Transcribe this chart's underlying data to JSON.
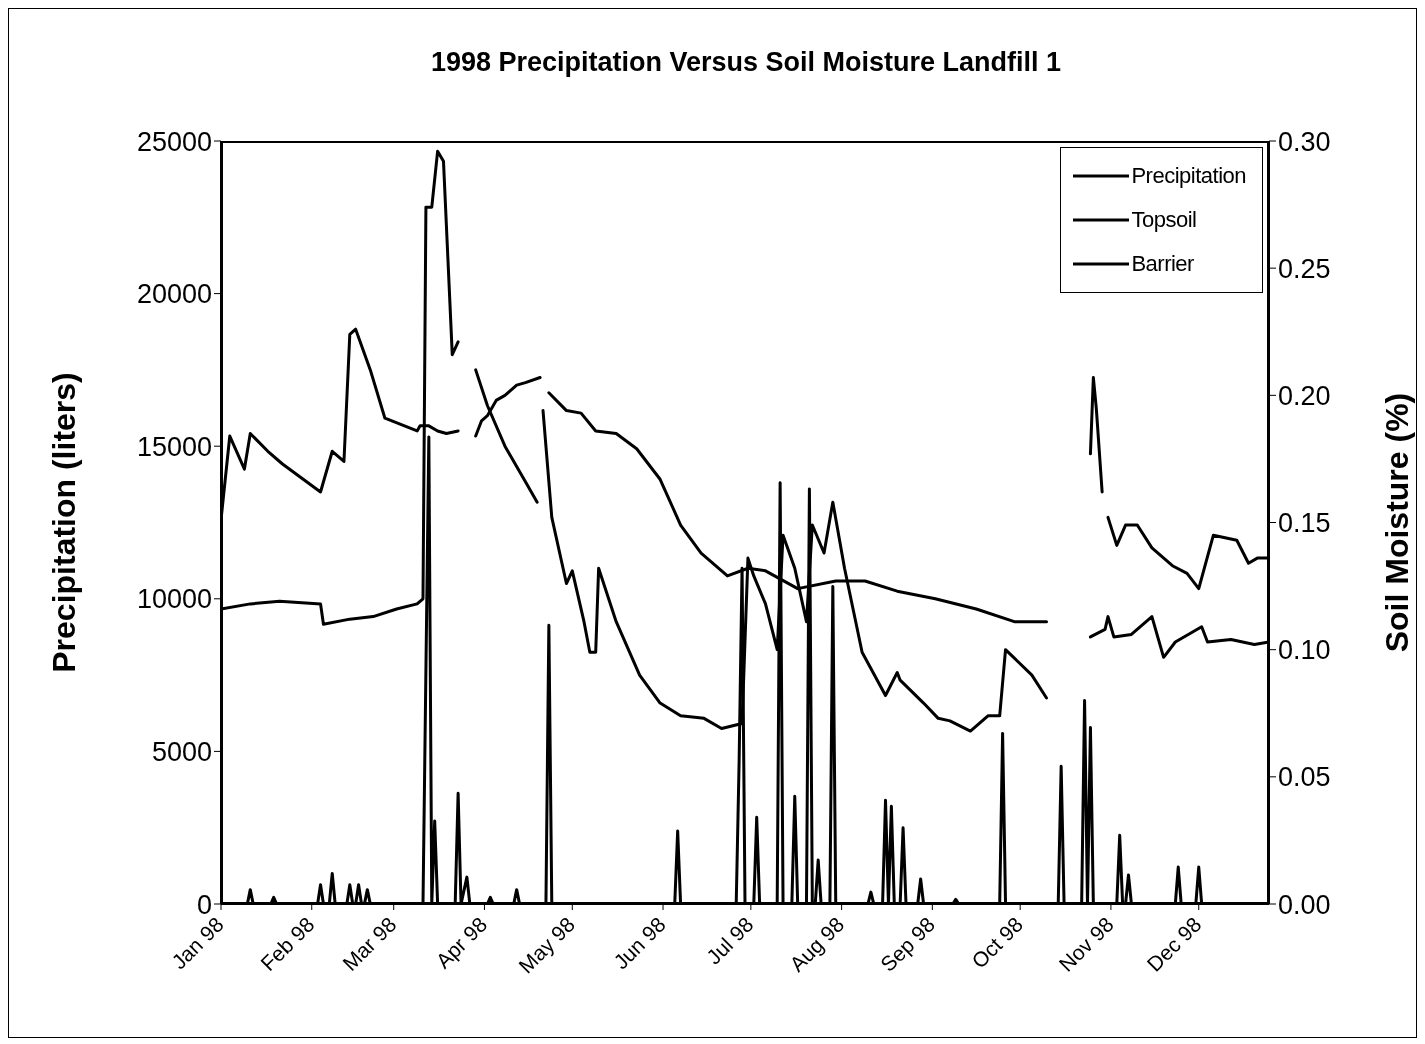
{
  "chart_data": {
    "type": "line",
    "title": "1998 Precipitation Versus Soil Moisture Landfill 1",
    "ylabel": "Precipitation (liters)",
    "y2label": "Soil Moisture (%)",
    "xlim": [
      "1998-01-01",
      "1998-12-25"
    ],
    "xticks": [
      {
        "value": "1998-01-01",
        "label": "Jan 98"
      },
      {
        "value": "1998-02-01",
        "label": "Feb 98"
      },
      {
        "value": "1998-03-01",
        "label": "Mar 98"
      },
      {
        "value": "1998-04-01",
        "label": "Apr 98"
      },
      {
        "value": "1998-05-01",
        "label": "May 98"
      },
      {
        "value": "1998-06-01",
        "label": "Jun 98"
      },
      {
        "value": "1998-07-01",
        "label": "Jul 98"
      },
      {
        "value": "1998-08-01",
        "label": "Aug 98"
      },
      {
        "value": "1998-09-01",
        "label": "Sep 98"
      },
      {
        "value": "1998-10-01",
        "label": "Oct 98"
      },
      {
        "value": "1998-11-01",
        "label": "Nov 98"
      },
      {
        "value": "1998-12-01",
        "label": "Dec 98"
      }
    ],
    "ylim": [
      0,
      25000
    ],
    "yticks": [
      0,
      5000,
      10000,
      15000,
      20000,
      25000
    ],
    "y2lim": [
      0,
      0.3
    ],
    "y2ticks": [
      {
        "value": 0,
        "label": "0.00"
      },
      {
        "value": 0.05,
        "label": "0.05"
      },
      {
        "value": 0.1,
        "label": "0.10"
      },
      {
        "value": 0.15,
        "label": "0.15"
      },
      {
        "value": 0.2,
        "label": "0.20"
      },
      {
        "value": 0.25,
        "label": "0.25"
      },
      {
        "value": 0.3,
        "label": "0.30"
      }
    ],
    "legend": "top right",
    "marker": "none",
    "line_style": "solid",
    "series": [
      {
        "name": "Precipitation",
        "color": "#000000",
        "x": [
          "1998-01-01",
          "1998-01-10",
          "1998-01-11",
          "1998-01-12",
          "1998-01-18",
          "1998-01-19",
          "1998-01-20",
          "1998-02-03",
          "1998-02-04",
          "1998-02-05",
          "1998-02-07",
          "1998-02-08",
          "1998-02-09",
          "1998-02-13",
          "1998-02-14",
          "1998-02-15",
          "1998-02-16",
          "1998-02-17",
          "1998-02-18",
          "1998-02-19",
          "1998-02-20",
          "1998-02-21",
          "1998-03-11",
          "1998-03-13",
          "1998-03-14",
          "1998-03-15",
          "1998-03-16",
          "1998-03-22",
          "1998-03-23",
          "1998-03-24",
          "1998-03-26",
          "1998-03-27",
          "1998-04-02",
          "1998-04-03",
          "1998-04-04",
          "1998-04-11",
          "1998-04-12",
          "1998-04-13",
          "1998-04-22",
          "1998-04-23",
          "1998-04-24",
          "1998-06-05",
          "1998-06-06",
          "1998-06-07",
          "1998-06-26",
          "1998-06-27",
          "1998-06-28",
          "1998-06-29",
          "1998-07-02",
          "1998-07-03",
          "1998-07-04",
          "1998-07-10",
          "1998-07-11",
          "1998-07-12",
          "1998-07-15",
          "1998-07-16",
          "1998-07-17",
          "1998-07-20",
          "1998-07-21",
          "1998-07-22",
          "1998-07-23",
          "1998-07-24",
          "1998-07-25",
          "1998-07-28",
          "1998-07-29",
          "1998-07-30",
          "1998-08-10",
          "1998-08-11",
          "1998-08-12",
          "1998-08-15",
          "1998-08-16",
          "1998-08-17",
          "1998-08-18",
          "1998-08-19",
          "1998-08-21",
          "1998-08-22",
          "1998-08-23",
          "1998-08-27",
          "1998-08-28",
          "1998-08-29",
          "1998-09-08",
          "1998-09-09",
          "1998-09-10",
          "1998-09-24",
          "1998-09-25",
          "1998-09-26",
          "1998-10-14",
          "1998-10-15",
          "1998-10-16",
          "1998-10-22",
          "1998-10-23",
          "1998-10-24",
          "1998-10-25",
          "1998-10-26",
          "1998-11-03",
          "1998-11-04",
          "1998-11-05",
          "1998-11-06",
          "1998-11-07",
          "1998-11-08",
          "1998-11-23",
          "1998-11-24",
          "1998-11-25",
          "1998-11-30",
          "1998-12-01",
          "1998-12-02",
          "1998-12-25"
        ],
        "values": [
          0,
          0,
          470,
          0,
          0,
          220,
          0,
          0,
          630,
          0,
          0,
          1000,
          0,
          0,
          630,
          0,
          0,
          630,
          0,
          0,
          470,
          0,
          0,
          15300,
          0,
          2720,
          0,
          0,
          3630,
          0,
          880,
          0,
          0,
          220,
          0,
          0,
          470,
          0,
          0,
          9130,
          0,
          0,
          2390,
          0,
          0,
          4700,
          11000,
          0,
          0,
          2840,
          0,
          0,
          13800,
          0,
          0,
          3530,
          0,
          0,
          13600,
          0,
          0,
          1440,
          0,
          0,
          10400,
          0,
          0,
          390,
          0,
          0,
          3400,
          0,
          3200,
          0,
          0,
          2500,
          0,
          0,
          820,
          0,
          0,
          150,
          0,
          0,
          5590,
          0,
          0,
          4510,
          0,
          0,
          6670,
          0,
          5780,
          0,
          0,
          2250,
          0,
          0,
          950,
          0,
          0,
          1210,
          0,
          0,
          1210,
          0,
          0
        ]
      },
      {
        "name": "Topsoil",
        "color": "#000000",
        "axis": "y2",
        "x": [
          "1998-01-01",
          "1998-01-04",
          "1998-01-09",
          "1998-01-11",
          "1998-01-17",
          "1998-01-22",
          "1998-02-04",
          "1998-02-08",
          "1998-02-12",
          "1998-02-14",
          "1998-02-16",
          "1998-02-21",
          "1998-02-26",
          "1998-03-09",
          "1998-03-10",
          "1998-03-13",
          "1998-03-16",
          "1998-03-19",
          "1998-03-23",
          "1998-03-26",
          "1998-03-29",
          "1998-03-31",
          "1998-04-02",
          "1998-04-05",
          "1998-04-08",
          "1998-04-12",
          "1998-04-15",
          "1998-04-20",
          "1998-04-21",
          "1998-04-23",
          "1998-04-29",
          "1998-05-04",
          "1998-05-09",
          "1998-05-16",
          "1998-05-23",
          "1998-05-31",
          "1998-06-07",
          "1998-06-14",
          "1998-06-23",
          "1998-06-30",
          "1998-07-06",
          "1998-07-17",
          "1998-07-30",
          "1998-08-09",
          "1998-08-20",
          "1998-09-02",
          "1998-09-16",
          "1998-09-29",
          "1998-10-10",
          "1998-10-18",
          "1998-10-25",
          "1998-10-30",
          "1998-10-31",
          "1998-11-02",
          "1998-11-08",
          "1998-11-15",
          "1998-11-19",
          "1998-11-23",
          "1998-12-02",
          "1998-12-04",
          "1998-12-12",
          "1998-12-20",
          "1998-12-25"
        ],
        "values": [
          0.151,
          0.184,
          0.171,
          0.185,
          0.178,
          0.173,
          0.162,
          0.178,
          0.174,
          0.224,
          0.226,
          0.21,
          0.191,
          0.186,
          0.188,
          0.188,
          0.186,
          0.185,
          0.186,
          null,
          0.184,
          0.19,
          0.192,
          0.198,
          0.2,
          0.204,
          0.205,
          0.207,
          null,
          0.201,
          0.194,
          0.193,
          0.186,
          0.185,
          0.179,
          0.167,
          0.149,
          0.138,
          0.129,
          0.132,
          0.131,
          0.124,
          0.127,
          0.127,
          0.123,
          0.12,
          0.116,
          0.111,
          0.111,
          null,
          0.105,
          0.108,
          0.113,
          0.105,
          0.106,
          0.113,
          0.097,
          0.103,
          0.109,
          0.103,
          0.104,
          0.102,
          0.103
        ]
      },
      {
        "name": "Barrier",
        "color": "#000000",
        "axis": "y2",
        "x": [
          "1998-01-01",
          "1998-01-11",
          "1998-01-21",
          "1998-02-04",
          "1998-02-05",
          "1998-02-14",
          "1998-02-22",
          "1998-03-02",
          "1998-03-09",
          "1998-03-11",
          "1998-03-12",
          "1998-03-14",
          "1998-03-16",
          "1998-03-18",
          "1998-03-21",
          "1998-03-23",
          "1998-03-26",
          "1998-03-29",
          "1998-04-02",
          "1998-04-08",
          "1998-04-15",
          "1998-04-19",
          "1998-04-20",
          "1998-04-21",
          "1998-04-24",
          "1998-04-29",
          "1998-05-01",
          "1998-05-05",
          "1998-05-07",
          "1998-05-09",
          "1998-05-10",
          "1998-05-16",
          "1998-05-24",
          "1998-05-31",
          "1998-06-07",
          "1998-06-15",
          "1998-06-21",
          "1998-06-28",
          "1998-06-30",
          "1998-07-02",
          "1998-07-06",
          "1998-07-10",
          "1998-07-12",
          "1998-07-16",
          "1998-07-20",
          "1998-07-22",
          "1998-07-26",
          "1998-07-29",
          "1998-08-02",
          "1998-08-08",
          "1998-08-16",
          "1998-08-20",
          "1998-08-21",
          "1998-08-29",
          "1998-09-03",
          "1998-09-07",
          "1998-09-14",
          "1998-09-20",
          "1998-09-24",
          "1998-09-26",
          "1998-10-05",
          "1998-10-10",
          "1998-10-18",
          "1998-10-25",
          "1998-10-26",
          "1998-10-27",
          "1998-10-29",
          "1998-10-30",
          "1998-10-31",
          "1998-11-03",
          "1998-11-06",
          "1998-11-10",
          "1998-11-15",
          "1998-11-22",
          "1998-11-27",
          "1998-12-01",
          "1998-12-06",
          "1998-12-14",
          "1998-12-18",
          "1998-12-21",
          "1998-12-25"
        ],
        "values": [
          0.116,
          0.118,
          0.119,
          0.118,
          0.11,
          0.112,
          0.113,
          0.116,
          0.118,
          0.12,
          0.274,
          0.274,
          0.296,
          0.292,
          0.216,
          0.221,
          null,
          0.21,
          0.196,
          0.18,
          0.166,
          0.158,
          null,
          0.194,
          0.152,
          0.126,
          0.131,
          0.111,
          0.099,
          0.099,
          0.132,
          0.111,
          0.09,
          0.079,
          0.074,
          0.073,
          0.069,
          0.071,
          0.136,
          0.129,
          0.118,
          0.1,
          0.145,
          0.132,
          0.111,
          0.149,
          0.138,
          0.158,
          0.132,
          0.099,
          0.082,
          0.091,
          0.088,
          0.079,
          0.073,
          0.072,
          0.068,
          0.074,
          0.074,
          0.1,
          0.09,
          0.081,
          null,
          0.177,
          0.207,
          0.195,
          0.162,
          null,
          0.152,
          0.141,
          0.149,
          0.149,
          0.14,
          0.133,
          0.13,
          0.124,
          0.145,
          0.143,
          0.134,
          0.136,
          0.136
        ]
      }
    ]
  }
}
